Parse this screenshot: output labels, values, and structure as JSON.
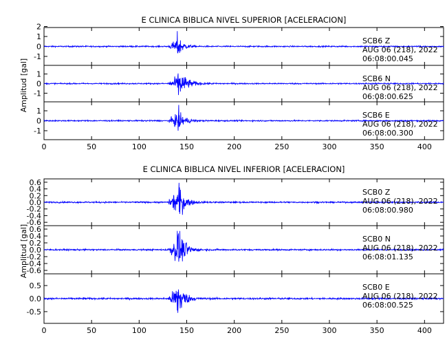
{
  "chart_data": [
    {
      "type": "line",
      "title": "E CLINICA BIBLICA NIVEL SUPERIOR [ACELERACION]",
      "ylabel": "Amplitud [gal]",
      "xlabel": "",
      "xlim": [
        0,
        420
      ],
      "x_ticks": [
        0,
        50,
        100,
        150,
        200,
        250,
        300,
        350,
        400
      ],
      "grid": false,
      "color": "#0000ff",
      "panels": [
        {
          "station": "SCB6",
          "component": "Z",
          "date": "AUG 06 (218), 2022",
          "time": "06:08:00.045",
          "ylim": [
            -1.9,
            1.9
          ],
          "y_ticks": [
            -1,
            0,
            1
          ],
          "y_ticks_extra": [
            2
          ],
          "noise": 0.06,
          "onset": 130,
          "peak_time": 140,
          "peak_amp": 1.3,
          "coda_decay": 5
        },
        {
          "station": "SCB6",
          "component": "N",
          "date": "AUG 06 (218), 2022",
          "time": "06:08:00.625",
          "ylim": [
            -1.9,
            1.9
          ],
          "y_ticks": [
            -1,
            0,
            1
          ],
          "y_ticks_extra": [],
          "noise": 0.06,
          "onset": 130,
          "peak_time": 141,
          "peak_amp": 1.6,
          "coda_decay": 8
        },
        {
          "station": "SCB6",
          "component": "E",
          "date": "AUG 06 (218), 2022",
          "time": "06:08:00.300",
          "ylim": [
            -1.9,
            1.9
          ],
          "y_ticks": [
            -1,
            0,
            1
          ],
          "y_ticks_extra": [],
          "noise": 0.06,
          "onset": 130,
          "peak_time": 140,
          "peak_amp": 1.3,
          "coda_decay": 6
        }
      ]
    },
    {
      "type": "line",
      "title": "E CLINICA BIBLICA NIVEL INFERIOR [ACELERACION]",
      "ylabel": "Amplitud [gal]",
      "xlabel": "",
      "xlim": [
        0,
        420
      ],
      "x_ticks": [
        0,
        50,
        100,
        150,
        200,
        250,
        300,
        350,
        400
      ],
      "grid": false,
      "color": "#0000ff",
      "panels": [
        {
          "station": "SCB0",
          "component": "Z",
          "date": "AUG 06 (218), 2022",
          "time": "06:08:00.980",
          "ylim": [
            -0.7,
            0.7
          ],
          "y_ticks": [
            -0.6,
            -0.4,
            -0.2,
            0.0,
            0.2,
            0.4,
            0.6
          ],
          "y_ticks_extra": [],
          "noise": 0.02,
          "onset": 130,
          "peak_time": 140,
          "peak_amp": 0.7,
          "coda_decay": 6
        },
        {
          "station": "SCB0",
          "component": "N",
          "date": "AUG 06 (218), 2022",
          "time": "06:08:01.135",
          "ylim": [
            -0.7,
            0.7
          ],
          "y_ticks": [
            -0.6,
            -0.4,
            -0.2,
            0.0,
            0.2,
            0.4,
            0.6
          ],
          "y_ticks_extra": [],
          "noise": 0.02,
          "onset": 130,
          "peak_time": 140,
          "peak_amp": 0.65,
          "coda_decay": 7
        },
        {
          "station": "SCB0",
          "component": "E",
          "date": "AUG 06 (218), 2022",
          "time": "06:08:00.525",
          "ylim": [
            -0.95,
            0.95
          ],
          "y_ticks": [
            -0.5,
            0.0,
            0.5
          ],
          "y_ticks_extra": [],
          "noise": 0.03,
          "onset": 130,
          "peak_time": 140,
          "peak_amp": 0.9,
          "coda_decay": 6
        }
      ]
    }
  ]
}
